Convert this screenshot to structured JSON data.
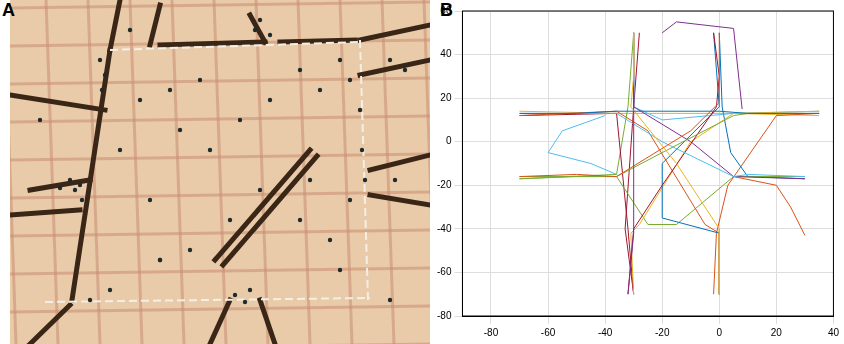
{
  "panel_labels": [
    "A",
    "B"
  ],
  "chart_data": {
    "type": "line",
    "xlim": [
      -90,
      40
    ],
    "xticks": [
      -80,
      -60,
      -40,
      -20,
      0,
      20,
      40
    ],
    "ylim": [
      -80,
      60
    ],
    "yticks": [
      -80,
      -60,
      -40,
      -20,
      0,
      20,
      40,
      60
    ],
    "grid": true,
    "series": [
      {
        "color": "#0072BD",
        "x": [
          -70,
          -50,
          -36,
          -20,
          0,
          10,
          35
        ],
        "y": [
          13,
          13,
          14,
          14,
          14,
          13,
          13
        ]
      },
      {
        "color": "#D95319",
        "x": [
          -70,
          -50,
          -36,
          -10,
          0,
          0
        ],
        "y": [
          -16,
          -15,
          -16,
          5,
          18,
          50
        ]
      },
      {
        "color": "#EDB120",
        "x": [
          -30,
          -30,
          -31,
          -15,
          0,
          0
        ],
        "y": [
          50,
          30,
          16,
          -10,
          -40,
          -70
        ]
      },
      {
        "color": "#7E2F8E",
        "x": [
          -32,
          -30,
          -30,
          -30,
          -30
        ],
        "y": [
          -70,
          -42,
          -10,
          16,
          50
        ]
      },
      {
        "color": "#77AC30",
        "x": [
          35,
          10,
          5,
          -20,
          -36,
          -50,
          -70
        ],
        "y": [
          13,
          13,
          12,
          -5,
          -16,
          -16,
          -17
        ]
      },
      {
        "color": "#4DBEEE",
        "x": [
          30,
          10,
          5,
          -20,
          -36,
          -70
        ],
        "y": [
          -16,
          -15,
          -16,
          0,
          13,
          13
        ]
      },
      {
        "color": "#A2142F",
        "x": [
          -2,
          0,
          -1,
          -20,
          -30,
          -32
        ],
        "y": [
          50,
          30,
          16,
          -20,
          -40,
          -70
        ]
      },
      {
        "color": "#0072BD",
        "x": [
          0,
          0,
          -20,
          -20,
          0,
          -2
        ],
        "y": [
          -70,
          -42,
          -35,
          -10,
          16,
          50
        ]
      },
      {
        "color": "#D95319",
        "x": [
          -70,
          -36,
          -25,
          -5,
          0,
          0
        ],
        "y": [
          12,
          14,
          5,
          -38,
          -42,
          -70
        ]
      },
      {
        "color": "#EDB120",
        "x": [
          35,
          5,
          -10,
          -28,
          -31,
          -30
        ],
        "y": [
          14,
          13,
          0,
          -38,
          -42,
          -70
        ]
      },
      {
        "color": "#7E2F8E",
        "x": [
          30,
          5,
          -10,
          -30,
          -30
        ],
        "y": [
          -17,
          -16,
          0,
          16,
          50
        ]
      },
      {
        "color": "#77AC30",
        "x": [
          -70,
          -36,
          -25,
          -15,
          5,
          30
        ],
        "y": [
          -16,
          -16,
          -38,
          -38,
          -16,
          -16
        ]
      },
      {
        "color": "#4DBEEE",
        "x": [
          -30,
          -30,
          -20,
          5,
          35
        ],
        "y": [
          50,
          16,
          10,
          13,
          14
        ]
      },
      {
        "color": "#A2142F",
        "x": [
          -30,
          -32,
          -36,
          -70
        ],
        "y": [
          -70,
          -40,
          13,
          12
        ]
      },
      {
        "color": "#4DBEEE",
        "x": [
          -40,
          -55,
          -60,
          -45,
          -36
        ],
        "y": [
          12,
          5,
          -5,
          -10,
          -15
        ]
      },
      {
        "color": "#0072BD",
        "x": [
          0,
          1,
          4,
          10,
          30
        ],
        "y": [
          50,
          16,
          -5,
          -16,
          -17
        ]
      },
      {
        "color": "#D95319",
        "x": [
          -2,
          -1,
          3,
          20,
          35
        ],
        "y": [
          -70,
          -42,
          -20,
          12,
          13
        ]
      },
      {
        "color": "#7E2F8E",
        "x": [
          -20,
          -15,
          5,
          8
        ],
        "y": [
          50,
          55,
          52,
          15
        ]
      },
      {
        "color": "#D95319",
        "x": [
          5,
          20,
          25,
          30
        ],
        "y": [
          -16,
          -20,
          -30,
          -43
        ]
      },
      {
        "color": "#77AC30",
        "x": [
          -70,
          -36,
          -32,
          -30
        ],
        "y": [
          -17,
          -15,
          16,
          50
        ]
      },
      {
        "color": "#EDB120",
        "x": [
          35,
          5,
          -35,
          -70
        ],
        "y": [
          12,
          13,
          13,
          14
        ]
      },
      {
        "color": "#A2142F",
        "x": [
          -28,
          -30,
          -33,
          -30
        ],
        "y": [
          50,
          16,
          -40,
          -70
        ]
      }
    ]
  }
}
